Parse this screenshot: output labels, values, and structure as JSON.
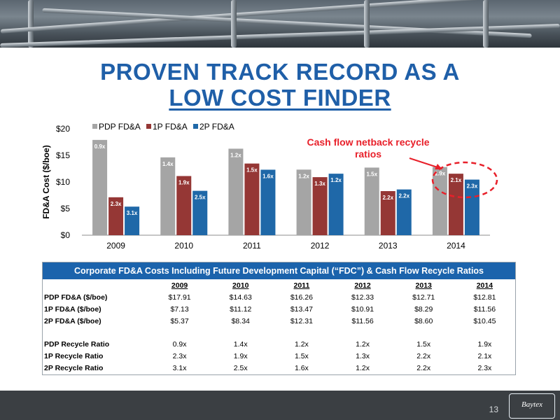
{
  "title_line1": "PROVEN TRACK RECORD AS A",
  "title_line2": "LOW COST FINDER",
  "chart_data": {
    "type": "bar",
    "categories": [
      "2009",
      "2010",
      "2011",
      "2012",
      "2013",
      "2014"
    ],
    "series": [
      {
        "name": "PDP FD&A",
        "color": "#a5a5a5",
        "values": [
          17.91,
          14.63,
          16.26,
          12.33,
          12.71,
          12.81
        ],
        "labels": [
          "0.9x",
          "1.4x",
          "1.2x",
          "1.2x",
          "1.5x",
          "1.9x"
        ]
      },
      {
        "name": "1P FD&A",
        "color": "#953735",
        "values": [
          7.13,
          11.12,
          13.47,
          10.91,
          8.29,
          11.56
        ],
        "labels": [
          "2.3x",
          "1.9x",
          "1.5x",
          "1.3x",
          "2.2x",
          "2.1x"
        ]
      },
      {
        "name": "2P FD&A",
        "color": "#1f68a8",
        "values": [
          5.37,
          8.34,
          12.31,
          11.56,
          8.6,
          10.45
        ],
        "labels": [
          "3.1x",
          "2.5x",
          "1.6x",
          "1.2x",
          "2.2x",
          "2.3x"
        ]
      }
    ],
    "ylabel": "FD&A Cost ($/boe)",
    "yticks": [
      "$0",
      "$5",
      "$10",
      "$15",
      "$20"
    ],
    "ylim": [
      0,
      20
    ],
    "legend": "top",
    "annotation": {
      "line1": "Cash flow netback recycle",
      "line2": "ratios",
      "color": "#e8202a"
    }
  },
  "table": {
    "title": "Corporate FD&A Costs Including Future Development Capital (“FDC”) & Cash Flow Recycle Ratios",
    "years": [
      "2009",
      "2010",
      "2011",
      "2012",
      "2013",
      "2014"
    ],
    "cost_rows": [
      {
        "label": "PDP FD&A ($/boe)",
        "values": [
          "$17.91",
          "$14.63",
          "$16.26",
          "$12.33",
          "$12.71",
          "$12.81"
        ]
      },
      {
        "label": "1P FD&A ($/boe)",
        "values": [
          "$7.13",
          "$11.12",
          "$13.47",
          "$10.91",
          "$8.29",
          "$11.56"
        ]
      },
      {
        "label": "2P FD&A ($/boe)",
        "values": [
          "$5.37",
          "$8.34",
          "$12.31",
          "$11.56",
          "$8.60",
          "$10.45"
        ]
      }
    ],
    "ratio_rows": [
      {
        "label": "PDP Recycle Ratio",
        "values": [
          "0.9x",
          "1.4x",
          "1.2x",
          "1.2x",
          "1.5x",
          "1.9x"
        ]
      },
      {
        "label": "1P Recycle Ratio",
        "values": [
          "2.3x",
          "1.9x",
          "1.5x",
          "1.3x",
          "2.2x",
          "2.1x"
        ]
      },
      {
        "label": "2P Recycle Ratio",
        "values": [
          "3.1x",
          "2.5x",
          "1.6x",
          "1.2x",
          "2.2x",
          "2.3x"
        ]
      }
    ]
  },
  "page_number": "13",
  "logo_text": "Baytex"
}
